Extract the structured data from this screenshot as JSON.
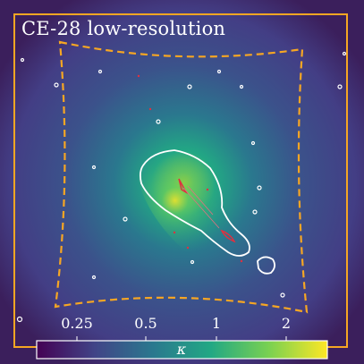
{
  "title": "CE-28 low-resolution",
  "colorbar": {
    "label": "κ",
    "ticks": [
      "0.25",
      "0.5",
      "1",
      "2"
    ],
    "colormap": "viridis",
    "colors": [
      "#3b1f5c",
      "#414487",
      "#2a788e",
      "#22a884",
      "#7ad151",
      "#fde725"
    ]
  },
  "frame_color": "#f6a623",
  "contour_colors": {
    "critical_curve": "#ffffff",
    "caustic": "#e03040"
  }
}
